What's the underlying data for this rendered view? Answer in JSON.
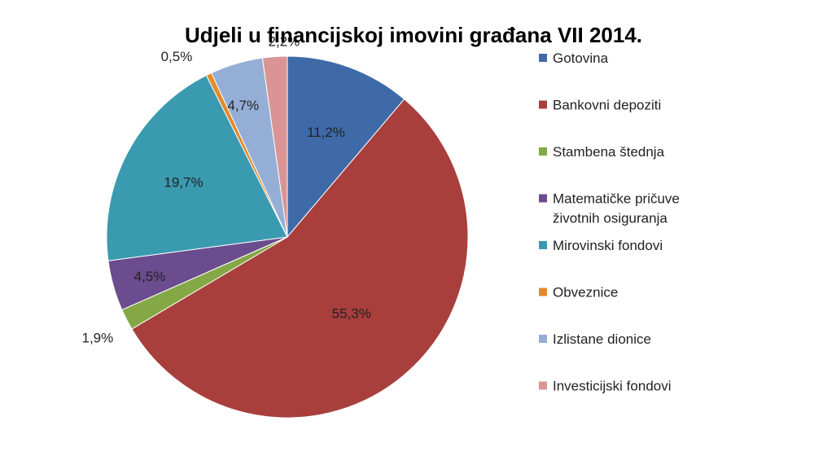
{
  "chart_data": {
    "type": "pie",
    "title": "Udjeli u financijskoj imovini građana VII 2014.",
    "legend_position": "right",
    "slices": [
      {
        "name": "Gotovina",
        "value": 11.2,
        "label": "11,2%",
        "color": "#3E6AA8"
      },
      {
        "name": "Bankovni depoziti",
        "value": 55.3,
        "label": "55,3%",
        "color": "#A83F3D"
      },
      {
        "name": "Stambena štednja",
        "value": 1.9,
        "label": "1,9%",
        "color": "#84A846"
      },
      {
        "name": "Matematičke pričuve životnih osiguranja",
        "legend_lines": [
          "Matematičke pričuve",
          "životnih osiguranja"
        ],
        "value": 4.5,
        "label": "4,5%",
        "color": "#6B4C8E"
      },
      {
        "name": "Mirovinski fondovi",
        "value": 19.7,
        "label": "19,7%",
        "color": "#3A9AB0"
      },
      {
        "name": "Obveznice",
        "value": 0.5,
        "label": "0,5%",
        "color": "#E28A2C"
      },
      {
        "name": "Izlistane dionice",
        "value": 4.7,
        "label": "4,7%",
        "color": "#95AED6"
      },
      {
        "name": "Investicijski fondovi",
        "value": 2.2,
        "label": "2,2%",
        "color": "#D99593"
      }
    ]
  }
}
